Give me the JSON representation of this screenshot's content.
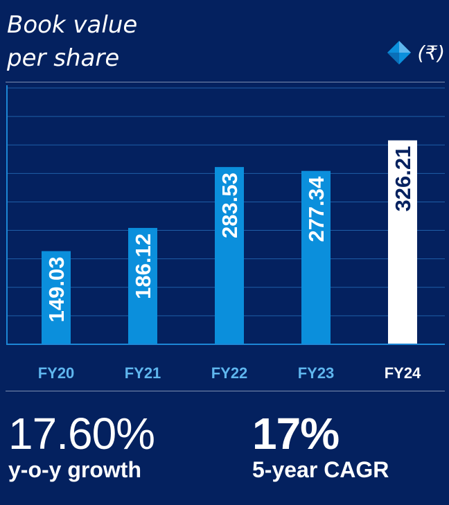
{
  "header": {
    "title_line1": "Book value",
    "title_line2": "per share",
    "currency": "(₹)"
  },
  "colors": {
    "background": "#04215f",
    "bar": "#0b8fdc",
    "highlight_bar": "#ffffff",
    "tick_label": "#5fb6ee",
    "highlight_tick_label": "#ffffff",
    "grid": "#1f5fa8",
    "axis": "#1d87d6"
  },
  "chart_data": {
    "type": "bar",
    "categories": [
      "FY20",
      "FY21",
      "FY22",
      "FY23",
      "FY24"
    ],
    "values": [
      149.03,
      186.12,
      283.53,
      277.34,
      326.21
    ],
    "value_labels": [
      "149.03",
      "186.12",
      "283.53",
      "277.34",
      "326.21"
    ],
    "highlight_index": 4,
    "ylim": [
      0,
      410
    ],
    "grid": true,
    "title": "Book value per share",
    "ylabel": "(₹)",
    "xlabel": ""
  },
  "stats": [
    {
      "value": "17.60%",
      "label": "y-o-y growth"
    },
    {
      "value": "17%",
      "label": "5-year CAGR"
    }
  ]
}
